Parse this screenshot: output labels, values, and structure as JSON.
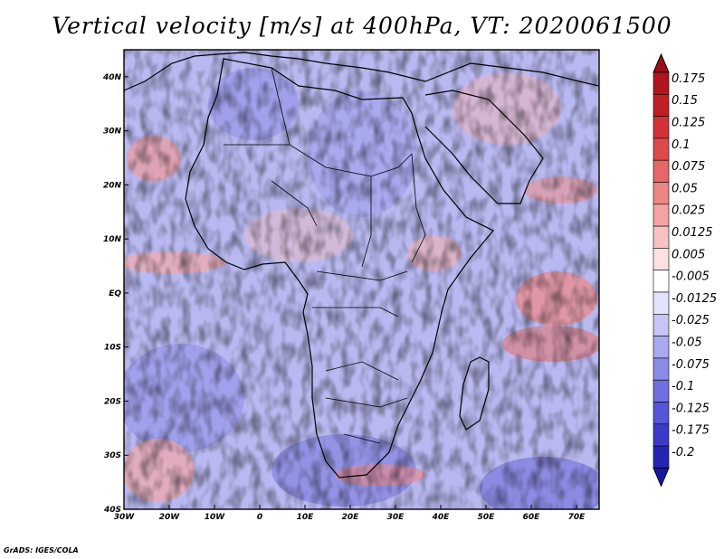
{
  "title": "Vertical velocity [m/s] at 400hPa, VT: 2020061500",
  "credit": "GrADS: IGES/COLA",
  "map": {
    "lon_range": [
      -30,
      75
    ],
    "lat_range": [
      -40,
      45
    ],
    "lat_ticks": [
      {
        "value": 40,
        "label": "40N"
      },
      {
        "value": 30,
        "label": "30N"
      },
      {
        "value": 20,
        "label": "20N"
      },
      {
        "value": 10,
        "label": "10N"
      },
      {
        "value": 0,
        "label": "EQ"
      },
      {
        "value": -10,
        "label": "10S"
      },
      {
        "value": -20,
        "label": "20S"
      },
      {
        "value": -30,
        "label": "30S"
      },
      {
        "value": -40,
        "label": "40S"
      }
    ],
    "lon_ticks": [
      {
        "value": -30,
        "label": "30W"
      },
      {
        "value": -20,
        "label": "20W"
      },
      {
        "value": -10,
        "label": "10W"
      },
      {
        "value": 0,
        "label": "0"
      },
      {
        "value": 10,
        "label": "10E"
      },
      {
        "value": 20,
        "label": "20E"
      },
      {
        "value": 30,
        "label": "30E"
      },
      {
        "value": 40,
        "label": "40E"
      },
      {
        "value": 50,
        "label": "50E"
      },
      {
        "value": 60,
        "label": "60E"
      },
      {
        "value": 70,
        "label": "70E"
      }
    ]
  },
  "colorbar": {
    "levels": [
      {
        "label": "0.175",
        "color": "#b0141e"
      },
      {
        "label": "0.15",
        "color": "#c01f26"
      },
      {
        "label": "0.125",
        "color": "#d03236"
      },
      {
        "label": "0.1",
        "color": "#dc4a4c"
      },
      {
        "label": "0.075",
        "color": "#e56767"
      },
      {
        "label": "0.05",
        "color": "#ec8584"
      },
      {
        "label": "0.025",
        "color": "#f2a4a3"
      },
      {
        "label": "0.0125",
        "color": "#f7c3c2"
      },
      {
        "label": "0.005",
        "color": "#fbe2e1"
      },
      {
        "label": "-0.005",
        "color": "#ffffff"
      },
      {
        "label": "-0.0125",
        "color": "#e3e3fb"
      },
      {
        "label": "-0.025",
        "color": "#c6c6f6"
      },
      {
        "label": "-0.05",
        "color": "#a9a9f0"
      },
      {
        "label": "-0.075",
        "color": "#8c8ce8"
      },
      {
        "label": "-0.1",
        "color": "#7070e0"
      },
      {
        "label": "-0.125",
        "color": "#5555d6"
      },
      {
        "label": "-0.175",
        "color": "#3b3bc8"
      },
      {
        "label": "-0.2",
        "color": "#2424b4"
      }
    ],
    "top_color": "#9a0d18",
    "bottom_color": "#1616a0"
  }
}
